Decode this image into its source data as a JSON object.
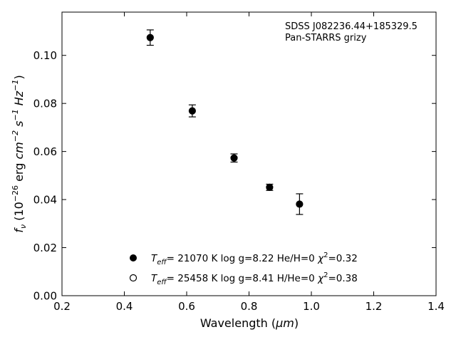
{
  "chart_data": {
    "type": "scatter",
    "xlabel_main": "Wavelength (",
    "xlabel_unit": "μm",
    "xlabel_end": ")",
    "ylabel_sym": "f",
    "ylabel_sub": "ν",
    "ylabel_open": " (10",
    "ylabel_exp": "−26",
    "ylabel_units": " erg ",
    "ylabel_cm": "cm",
    "ylabel_cm_exp": "−2",
    "ylabel_s": " s",
    "ylabel_s_exp": "−1",
    "ylabel_hz": " Hz",
    "ylabel_hz_exp": "−1",
    "ylabel_close": ")",
    "xlim": [
      0.2,
      1.4
    ],
    "ylim": [
      0.0,
      0.118
    ],
    "xticks": [
      "0.2",
      "0.4",
      "0.6",
      "0.8",
      "1.0",
      "1.2",
      "1.4"
    ],
    "xtick_values": [
      0.2,
      0.4,
      0.6,
      0.8,
      1.0,
      1.2,
      1.4
    ],
    "yticks": [
      "0.00",
      "0.02",
      "0.04",
      "0.06",
      "0.08",
      "0.10"
    ],
    "ytick_values": [
      0.0,
      0.02,
      0.04,
      0.06,
      0.08,
      0.1
    ],
    "grid": false,
    "annotation_lines": [
      "SDSS J082236.44+185329.5",
      "Pan-STARRS grizy"
    ],
    "series": [
      {
        "marker": "filled-circle",
        "x": [
          0.483,
          0.618,
          0.752,
          0.866,
          0.962
        ],
        "y": [
          0.1074,
          0.0769,
          0.0573,
          0.0451,
          0.0381
        ],
        "yerr": [
          0.0032,
          0.0025,
          0.0017,
          0.0013,
          0.0043
        ]
      }
    ],
    "legend": {
      "placement": "lower-center",
      "entries": [
        {
          "marker": "filled-circle",
          "t_sym": "T",
          "t_sub": "eff",
          "text": "= 21070 K  log g=8.22  He/H=0  ",
          "chi_sym": "χ",
          "chi_exp": "2",
          "chi_val": "=0.32"
        },
        {
          "marker": "open-circle",
          "t_sym": "T",
          "t_sub": "eff",
          "text": "= 25458 K  log g=8.41  H/He=0  ",
          "chi_sym": "χ",
          "chi_exp": "2",
          "chi_val": "=0.38"
        }
      ]
    }
  }
}
